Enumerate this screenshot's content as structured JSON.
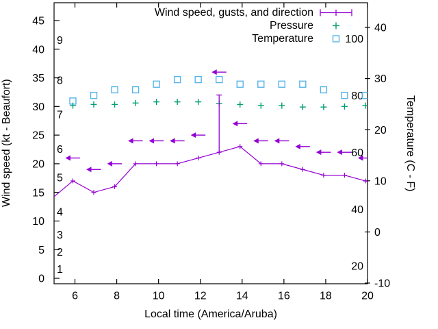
{
  "chart_data": {
    "type": "line",
    "title": "",
    "xlabel": "Local time (America/Aruba)",
    "ylabel_left": "Wind speed (kt - Beaufort)",
    "ylabel_right": "Temperature (C - F)",
    "x_range": [
      5,
      20
    ],
    "x_ticks": [
      6,
      8,
      10,
      12,
      14,
      16,
      18,
      20
    ],
    "left_axis": {
      "unit": "kt",
      "ticks": [
        0,
        5,
        10,
        15,
        20,
        25,
        30,
        35,
        40,
        45
      ]
    },
    "right_axis": {
      "unit": "C",
      "ticks": [
        -10,
        0,
        10,
        20,
        30,
        40
      ]
    },
    "beaufort_labels": [
      {
        "label": "1",
        "kt": 1
      },
      {
        "label": "2",
        "kt": 4
      },
      {
        "label": "3",
        "kt": 7
      },
      {
        "label": "4",
        "kt": 11
      },
      {
        "label": "5",
        "kt": 17
      },
      {
        "label": "6",
        "kt": 22
      },
      {
        "label": "7",
        "kt": 28
      },
      {
        "label": "8",
        "kt": 34
      },
      {
        "label": "9",
        "kt": 41
      }
    ],
    "fahrenheit_labels": [
      20,
      40,
      60,
      80,
      100
    ],
    "grid": false,
    "legend_position": "top-right-inside",
    "legend": [
      {
        "label": "Wind speed, gusts, and direction",
        "series": "wind",
        "color": "#9400d3",
        "sample": "errorbar-line"
      },
      {
        "label": "Pressure",
        "series": "pressure",
        "color": "#009e73",
        "sample": "plus"
      },
      {
        "label": "Temperature",
        "series": "temperature",
        "color": "#56b4e9",
        "sample": "square"
      }
    ],
    "x": [
      5.9,
      6.9,
      7.9,
      8.9,
      9.9,
      10.9,
      11.9,
      12.9,
      13.9,
      14.9,
      15.9,
      16.9,
      17.9,
      18.9,
      19.9
    ],
    "series": [
      {
        "name": "wind_speed_kt",
        "type": "line+points",
        "color": "#9400d3",
        "values": [
          17,
          15,
          16,
          20,
          20,
          20,
          21,
          22,
          23,
          20,
          20,
          19,
          18,
          18,
          17
        ],
        "edge_start": {
          "x": 5.0,
          "y": 14.25
        },
        "edge_end": {
          "x": 20.0,
          "y": 16.9
        }
      },
      {
        "name": "wind_direction_arrows_kt",
        "type": "left-arrows",
        "color": "#9400d3",
        "arrow_direction": "left",
        "values": [
          21,
          19,
          20,
          24,
          24,
          24,
          25,
          36,
          27,
          24,
          24,
          23,
          22,
          22,
          21
        ]
      },
      {
        "name": "wind_gust_bar",
        "type": "vertical-whisker",
        "color": "#9400d3",
        "x": 12.9,
        "from": 22,
        "to": 32
      },
      {
        "name": "pressure_inhg_on_left_scale",
        "type": "points-plus",
        "color": "#009e73",
        "values": [
          30.15,
          30.35,
          30.35,
          30.6,
          30.8,
          30.8,
          30.8,
          30.55,
          30.35,
          30.15,
          30.15,
          29.9,
          29.9,
          30.0,
          30.15
        ]
      },
      {
        "name": "temperature_c",
        "type": "points-square",
        "color": "#56b4e9",
        "values": [
          25.6,
          26.7,
          27.8,
          27.8,
          28.9,
          29.8,
          29.8,
          29.8,
          28.9,
          28.9,
          28.9,
          28.9,
          27.8,
          26.7,
          26.7
        ],
        "values_f": [
          78,
          80,
          82,
          82,
          84,
          86,
          86,
          86,
          84,
          84,
          84,
          84,
          82,
          80,
          80
        ]
      }
    ]
  }
}
